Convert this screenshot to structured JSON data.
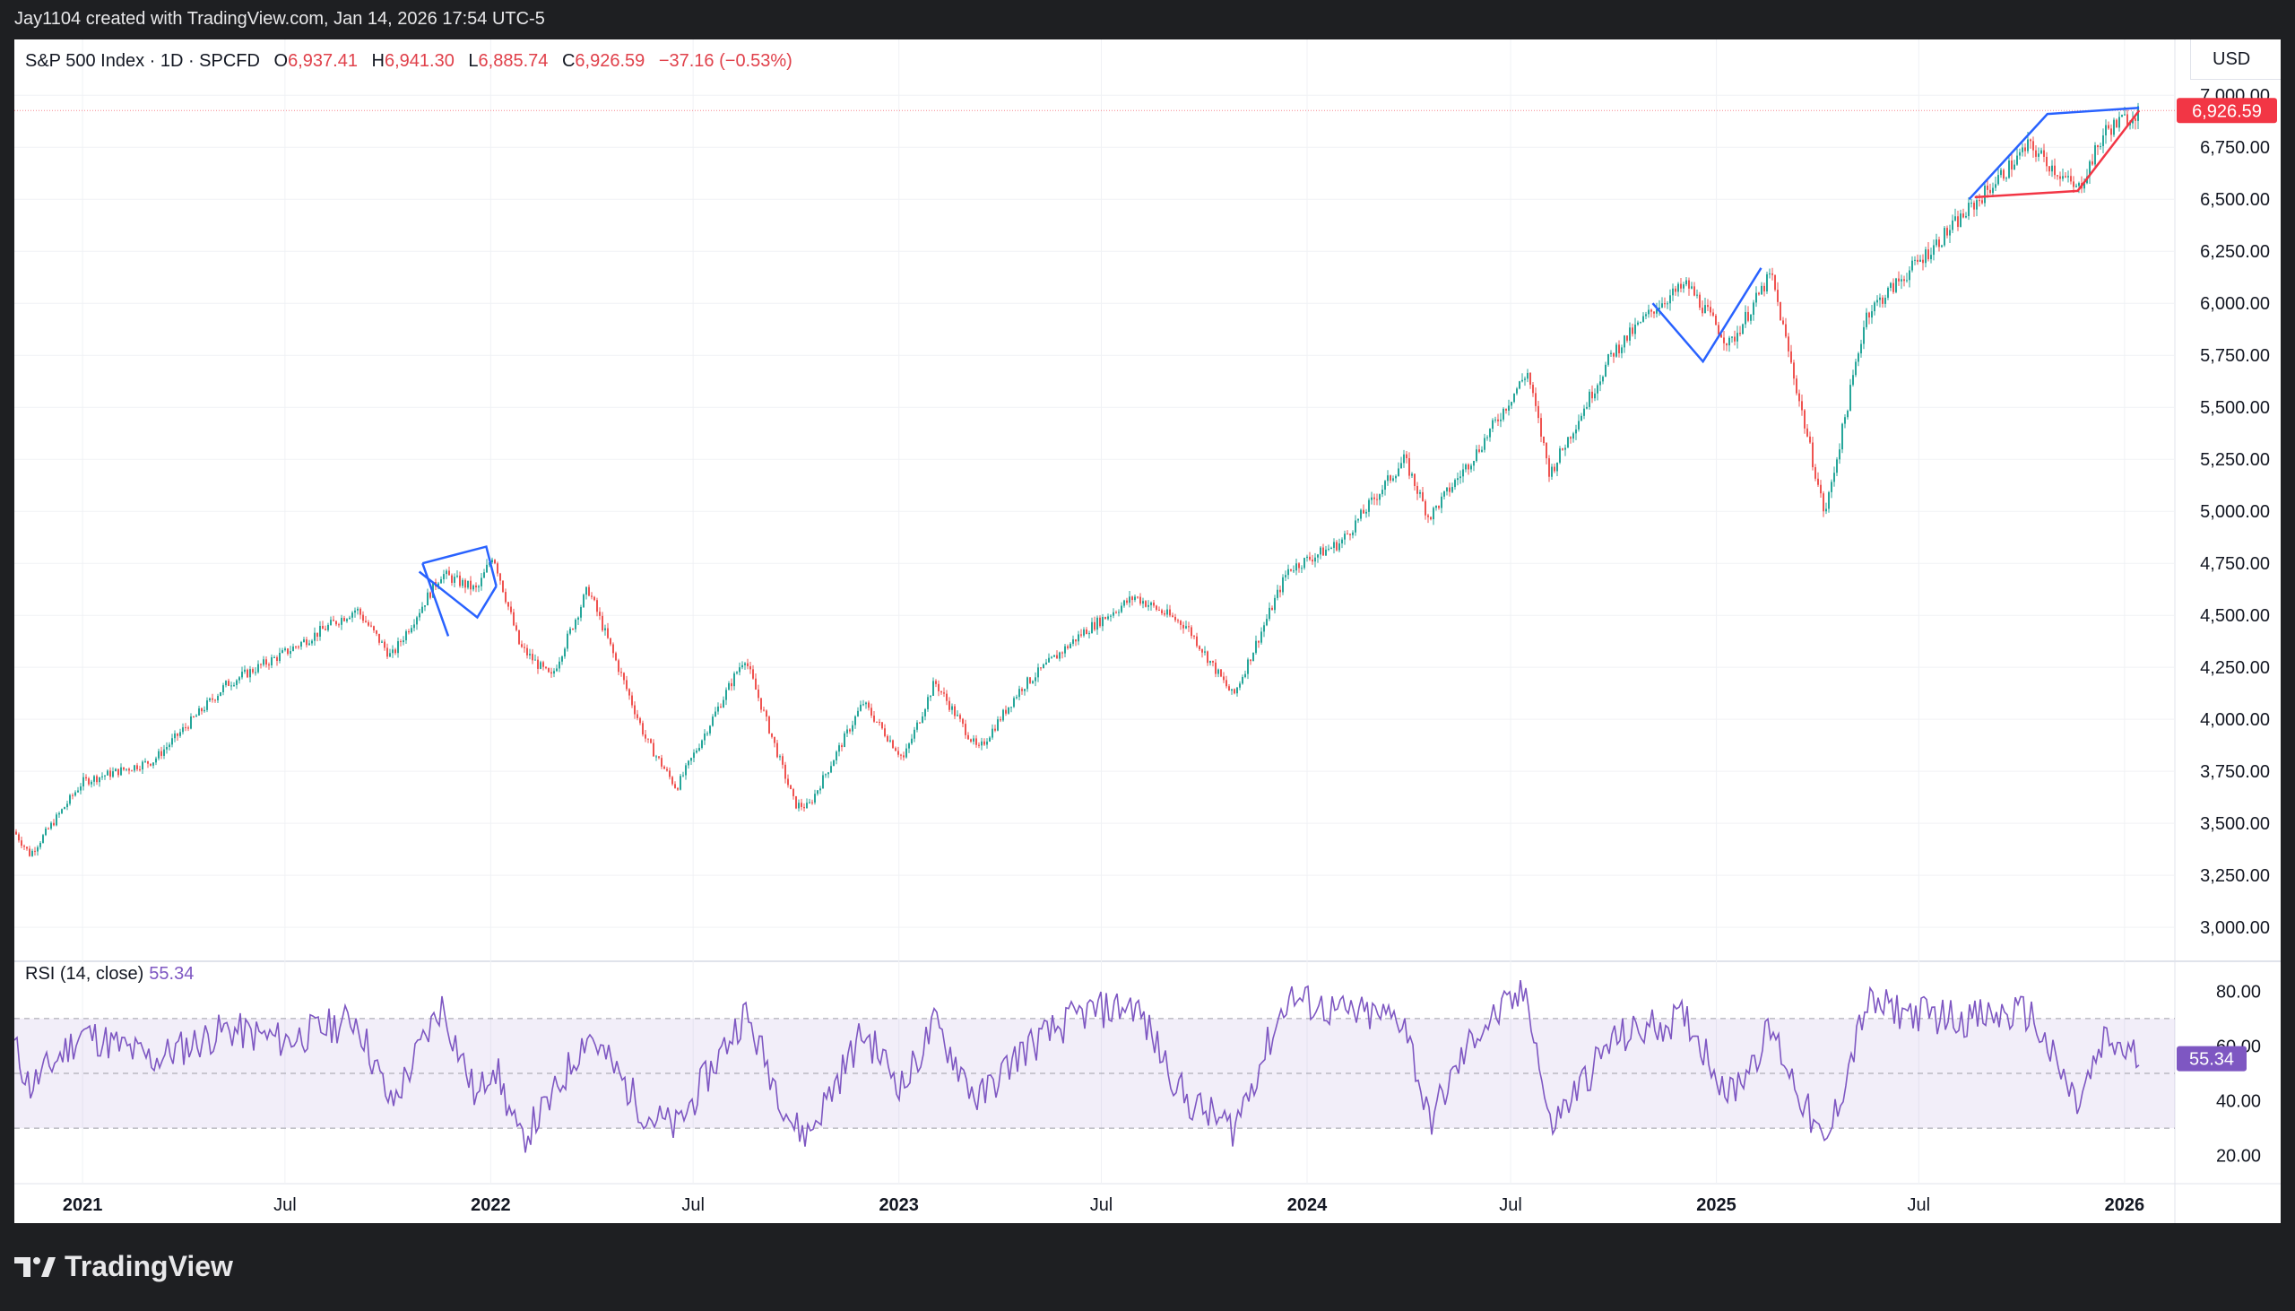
{
  "attribution": "Jay1104 created with TradingView.com, Jan 14, 2026 17:54 UTC-5",
  "symbol": {
    "name": "S&P 500 Index · 1D · SPCFD",
    "open_label": "O",
    "open": "6,937.41",
    "high_label": "H",
    "high": "6,941.30",
    "low_label": "L",
    "low": "6,885.74",
    "close_label": "C",
    "close": "6,926.59",
    "change": "−37.16 (−0.53%)"
  },
  "currency": "USD",
  "price_badge": "6,926.59",
  "rsi": {
    "label": "RSI (14, close)",
    "value": "55.34"
  },
  "footer": {
    "brand": "TradingView"
  },
  "colors": {
    "up": "#26a69a",
    "down": "#ef5350",
    "rsi": "#7e57c2",
    "pattern_blue": "#2962ff",
    "pattern_red": "#f23645",
    "badge": "#f23645"
  },
  "chart_data": [
    {
      "type": "line",
      "title": "S&P 500 Index · 1D · SPCFD",
      "x_ticks": [
        "2021",
        "Jul",
        "2022",
        "Jul",
        "2023",
        "Jul",
        "2024",
        "Jul",
        "2025",
        "Jul",
        "2026"
      ],
      "y_ticks": [
        "3,000.00",
        "3,250.00",
        "3,500.00",
        "3,750.00",
        "4,000.00",
        "4,250.00",
        "4,500.00",
        "4,750.00",
        "5,000.00",
        "5,250.00",
        "5,500.00",
        "5,750.00",
        "6,000.00",
        "6,250.00",
        "6,500.00",
        "6,750.00",
        "7,000.00"
      ],
      "ylim": [
        2880,
        7070
      ],
      "x": [
        "2020-11-01",
        "2020-11-15",
        "2021-01-01",
        "2021-03-05",
        "2021-05-10",
        "2021-07-01",
        "2021-09-03",
        "2021-10-04",
        "2021-11-18",
        "2021-12-20",
        "2022-01-03",
        "2022-01-27",
        "2022-02-24",
        "2022-03-29",
        "2022-05-20",
        "2022-06-16",
        "2022-08-16",
        "2022-09-30",
        "2022-10-12",
        "2022-11-30",
        "2023-01-05",
        "2023-02-02",
        "2023-03-13",
        "2023-04-20",
        "2023-06-15",
        "2023-07-31",
        "2023-09-15",
        "2023-10-27",
        "2023-12-15",
        "2024-01-31",
        "2024-03-28",
        "2024-04-19",
        "2024-05-31",
        "2024-07-16",
        "2024-08-05",
        "2024-09-30",
        "2024-11-11",
        "2024-12-06",
        "2025-01-13",
        "2025-02-19",
        "2025-04-08",
        "2025-05-15",
        "2025-06-27",
        "2025-08-15",
        "2025-10-08",
        "2025-11-20",
        "2025-12-15",
        "2026-01-14"
      ],
      "y": [
        3460,
        3350,
        3700,
        3800,
        4170,
        4320,
        4530,
        4300,
        4700,
        4620,
        4796,
        4350,
        4200,
        4630,
        3900,
        3670,
        4300,
        3590,
        3580,
        4080,
        3810,
        4180,
        3850,
        4150,
        4420,
        4590,
        4450,
        4110,
        4720,
        4850,
        5250,
        4970,
        5280,
        5670,
        5180,
        5760,
        6000,
        6090,
        5800,
        6140,
        4980,
        5950,
        6180,
        6450,
        6760,
        6540,
        6830,
        6926.59
      ],
      "series": [
        {
          "name": "S&P 500 Index",
          "values": [
            3460,
            3350,
            3700,
            3800,
            4170,
            4320,
            4530,
            4300,
            4700,
            4620,
            4796,
            4350,
            4200,
            4630,
            3900,
            3670,
            4300,
            3590,
            3580,
            4080,
            3810,
            4180,
            3850,
            4150,
            4420,
            4590,
            4450,
            4110,
            4720,
            4850,
            5250,
            4970,
            5280,
            5670,
            5180,
            5760,
            6000,
            6090,
            5800,
            6140,
            4980,
            5950,
            6180,
            6450,
            6760,
            6540,
            6830,
            6926.59
          ]
        }
      ],
      "last_price": 6926.59,
      "grid": true
    },
    {
      "type": "line",
      "title": "RSI (14, close)",
      "y_ticks": [
        "20.00",
        "40.00",
        "60.00",
        "80.00"
      ],
      "ylim": [
        15,
        85
      ],
      "bands": [
        30,
        50,
        70
      ],
      "x": [
        "2020-11-01",
        "2020-11-15",
        "2021-01-01",
        "2021-03-05",
        "2021-05-10",
        "2021-07-01",
        "2021-09-03",
        "2021-10-04",
        "2021-11-18",
        "2021-12-20",
        "2022-01-03",
        "2022-01-27",
        "2022-02-24",
        "2022-03-29",
        "2022-05-20",
        "2022-06-16",
        "2022-08-16",
        "2022-09-30",
        "2022-10-12",
        "2022-11-30",
        "2023-01-05",
        "2023-02-02",
        "2023-03-13",
        "2023-04-20",
        "2023-06-15",
        "2023-07-31",
        "2023-09-15",
        "2023-10-27",
        "2023-12-15",
        "2024-01-31",
        "2024-03-28",
        "2024-04-19",
        "2024-05-31",
        "2024-07-16",
        "2024-08-05",
        "2024-09-30",
        "2024-11-11",
        "2024-12-06",
        "2025-01-13",
        "2025-02-19",
        "2025-04-08",
        "2025-05-15",
        "2025-06-27",
        "2025-08-15",
        "2025-10-08",
        "2025-11-20",
        "2025-12-15",
        "2026-01-14"
      ],
      "series": [
        {
          "name": "RSI (14, close)",
          "values": [
            60,
            45,
            65,
            55,
            66,
            62,
            70,
            38,
            75,
            40,
            55,
            25,
            40,
            65,
            35,
            30,
            72,
            30,
            28,
            65,
            45,
            68,
            40,
            58,
            72,
            75,
            40,
            30,
            78,
            72,
            70,
            32,
            65,
            80,
            30,
            62,
            68,
            70,
            42,
            66,
            22,
            75,
            72,
            70,
            72,
            38,
            62,
            55.34
          ]
        }
      ],
      "last_value": 55.34
    }
  ]
}
